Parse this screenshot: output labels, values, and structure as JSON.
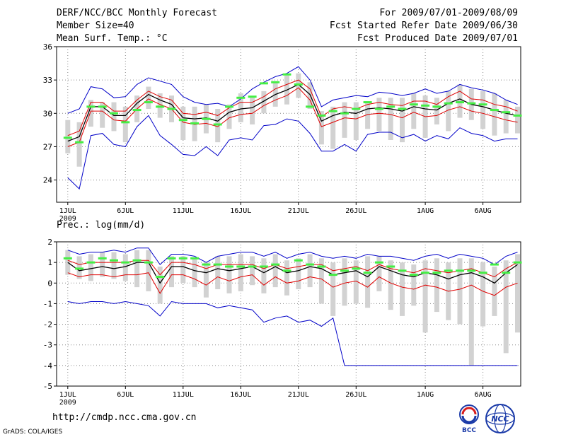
{
  "header": {
    "title": "DERF/NCC/BCC Monthly Forecast",
    "member_size": "Member Size=40",
    "variable": "Mean Surf. Temp.: °C",
    "period": "For 2009/07/01-2009/08/09",
    "started": "Fcst Started Refer Date 2009/06/30",
    "produced": "Fcst Produced Date 2009/07/01"
  },
  "precip_label": "Prec.: log(mm/d)",
  "footer": {
    "url": "http://cmdp.ncc.cma.gov.cn",
    "credit": "GrADS: COLA/IGES",
    "logo1_text": "BCC",
    "logo2_text": "NCC"
  },
  "colors": {
    "envelope": "#0000c8",
    "spread": "#e00000",
    "mean": "#000000",
    "box": "#d2d2d2",
    "marker": "#44ee44",
    "grid": "#888888"
  },
  "chart_data": [
    {
      "type": "line",
      "title": "Mean Surf. Temp.: °C",
      "x_days": 40,
      "x_ticks": [
        "1JUL",
        "6JUL",
        "11JUL",
        "16JUL",
        "21JUL",
        "26JUL",
        "1AUG",
        "6AUG"
      ],
      "x_tick_days": [
        1,
        6,
        11,
        16,
        21,
        26,
        32,
        37
      ],
      "x_year_label": "2009",
      "ylim": [
        22,
        36
      ],
      "yticks": [
        24,
        27,
        30,
        33,
        36
      ],
      "series": [
        {
          "name": "max",
          "values": [
            30.0,
            30.4,
            32.4,
            32.2,
            31.4,
            31.5,
            32.6,
            33.2,
            32.9,
            32.6,
            31.5,
            31.0,
            30.8,
            30.9,
            30.6,
            31.3,
            32.2,
            32.8,
            33.3,
            33.6,
            34.2,
            33.0,
            30.6,
            31.2,
            31.4,
            31.6,
            31.5,
            31.9,
            31.8,
            31.6,
            31.8,
            32.2,
            31.8,
            32.0,
            32.6,
            32.3,
            32.1,
            31.8,
            31.2,
            30.8
          ]
        },
        {
          "name": "mean_plus_sd",
          "values": [
            28.0,
            28.4,
            31.0,
            31.0,
            30.2,
            30.2,
            31.2,
            32.0,
            31.5,
            31.2,
            30.0,
            29.9,
            30.1,
            29.8,
            30.5,
            31.0,
            31.0,
            31.5,
            32.2,
            32.6,
            33.0,
            32.2,
            29.7,
            30.4,
            30.6,
            30.4,
            30.8,
            31.0,
            30.8,
            30.7,
            31.1,
            31.1,
            30.8,
            31.5,
            32.0,
            31.3,
            31.2,
            30.8,
            30.6,
            30.2
          ]
        },
        {
          "name": "mean",
          "values": [
            27.5,
            27.9,
            30.6,
            30.6,
            29.8,
            29.8,
            30.9,
            31.7,
            31.2,
            30.8,
            29.6,
            29.5,
            29.6,
            29.3,
            30.1,
            30.4,
            30.5,
            31.1,
            31.7,
            32.1,
            32.6,
            31.7,
            29.3,
            29.8,
            30.1,
            30.0,
            30.4,
            30.5,
            30.4,
            30.2,
            30.6,
            30.4,
            30.3,
            30.9,
            31.3,
            30.8,
            30.6,
            30.3,
            30.0,
            29.8
          ]
        },
        {
          "name": "mean_minus_sd",
          "values": [
            27.0,
            27.4,
            30.2,
            30.2,
            29.4,
            29.3,
            30.4,
            31.3,
            30.8,
            30.4,
            29.2,
            29.0,
            29.1,
            28.8,
            29.6,
            29.9,
            30.0,
            30.7,
            31.2,
            31.6,
            32.3,
            31.2,
            28.8,
            29.2,
            29.6,
            29.5,
            29.9,
            30.0,
            29.9,
            29.6,
            30.1,
            29.7,
            29.8,
            30.3,
            30.6,
            30.2,
            30.0,
            29.7,
            29.4,
            29.2
          ]
        },
        {
          "name": "min",
          "values": [
            24.2,
            23.2,
            28.0,
            28.2,
            27.2,
            27.0,
            28.8,
            29.8,
            28.0,
            27.2,
            26.3,
            26.2,
            27.0,
            26.2,
            27.6,
            27.8,
            27.6,
            28.9,
            29.0,
            29.5,
            29.3,
            28.2,
            26.6,
            26.6,
            27.2,
            26.6,
            28.1,
            28.3,
            28.3,
            27.8,
            28.1,
            27.5,
            28.0,
            27.7,
            28.7,
            28.2,
            28.0,
            27.5,
            27.7,
            27.7
          ]
        }
      ],
      "box_low": [
        26.4,
        25.2,
        28.8,
        28.7,
        28.4,
        27.4,
        29.2,
        30.4,
        29.6,
        29.2,
        27.6,
        27.5,
        28.2,
        27.4,
        28.6,
        29.2,
        29.0,
        30.0,
        30.6,
        30.8,
        31.4,
        30.4,
        27.2,
        26.8,
        27.8,
        27.6,
        28.6,
        28.4,
        27.6,
        27.4,
        28.6,
        27.8,
        29.0,
        28.4,
        29.6,
        29.4,
        28.6,
        28.0,
        28.2,
        28.2
      ],
      "box_high": [
        29.4,
        29.2,
        31.2,
        31.0,
        31.0,
        30.6,
        31.6,
        32.4,
        31.8,
        31.6,
        30.6,
        30.6,
        30.8,
        30.4,
        30.8,
        31.8,
        31.4,
        32.0,
        32.8,
        33.4,
        33.6,
        32.8,
        30.2,
        30.6,
        31.0,
        31.0,
        31.0,
        31.4,
        31.4,
        31.4,
        31.8,
        31.6,
        31.4,
        32.0,
        32.6,
        32.2,
        32.0,
        31.8,
        31.2,
        30.6
      ],
      "marker": [
        27.8,
        27.4,
        30.6,
        30.6,
        30.0,
        29.2,
        30.3,
        31.0,
        30.6,
        30.4,
        29.4,
        29.1,
        29.5,
        29.0,
        30.6,
        31.4,
        31.5,
        32.7,
        32.8,
        33.5,
        32.6,
        30.6,
        29.8,
        30.2,
        30.0,
        30.4,
        31.0,
        30.4,
        30.6,
        30.4,
        30.8,
        30.7,
        30.6,
        30.9,
        31.0,
        30.9,
        30.8,
        30.3,
        30.1,
        29.8
      ]
    },
    {
      "type": "line",
      "title": "Prec.: log(mm/d)",
      "x_days": 40,
      "x_ticks": [
        "1JUL",
        "6JUL",
        "11JUL",
        "16JUL",
        "21JUL",
        "26JUL",
        "1AUG",
        "6AUG"
      ],
      "x_tick_days": [
        1,
        6,
        11,
        16,
        21,
        26,
        32,
        37
      ],
      "x_year_label": "2009",
      "ylim": [
        -5,
        2
      ],
      "yticks": [
        -5,
        -4,
        -3,
        -2,
        -1,
        0,
        1,
        2
      ],
      "series": [
        {
          "name": "max",
          "values": [
            1.6,
            1.4,
            1.5,
            1.5,
            1.6,
            1.5,
            1.7,
            1.7,
            0.9,
            1.4,
            1.4,
            1.3,
            1.0,
            1.3,
            1.4,
            1.5,
            1.5,
            1.3,
            1.5,
            1.2,
            1.4,
            1.5,
            1.3,
            1.2,
            1.3,
            1.2,
            1.4,
            1.3,
            1.3,
            1.2,
            1.1,
            1.3,
            1.4,
            1.2,
            1.4,
            1.3,
            1.2,
            0.9,
            1.3,
            1.5
          ]
        },
        {
          "name": "mean_plus_sd",
          "values": [
            1.1,
            0.9,
            1.0,
            1.0,
            1.0,
            1.0,
            1.1,
            1.1,
            0.4,
            1.0,
            1.0,
            0.9,
            0.7,
            0.9,
            0.9,
            0.9,
            0.9,
            0.7,
            0.9,
            0.7,
            0.8,
            0.9,
            0.9,
            0.6,
            0.7,
            0.8,
            0.6,
            0.9,
            0.7,
            0.6,
            0.5,
            0.7,
            0.6,
            0.5,
            0.6,
            0.7,
            0.5,
            0.3,
            0.7,
            1.0
          ]
        },
        {
          "name": "mean",
          "values": [
            1.0,
            0.6,
            0.7,
            0.8,
            0.7,
            0.8,
            1.0,
            1.0,
            0.0,
            0.8,
            0.8,
            0.6,
            0.5,
            0.7,
            0.6,
            0.7,
            0.8,
            0.5,
            0.8,
            0.5,
            0.6,
            0.8,
            0.7,
            0.4,
            0.5,
            0.6,
            0.3,
            0.8,
            0.6,
            0.4,
            0.3,
            0.5,
            0.4,
            0.2,
            0.4,
            0.5,
            0.3,
            0.0,
            0.5,
            0.9
          ]
        },
        {
          "name": "mean_minus_sd",
          "values": [
            0.5,
            0.3,
            0.4,
            0.4,
            0.3,
            0.4,
            0.4,
            0.5,
            -0.5,
            0.4,
            0.4,
            0.2,
            -0.1,
            0.3,
            0.1,
            0.3,
            0.4,
            -0.1,
            0.3,
            0.0,
            0.1,
            0.3,
            0.2,
            -0.2,
            0.0,
            0.1,
            -0.2,
            0.3,
            0.0,
            -0.2,
            -0.3,
            -0.1,
            -0.2,
            -0.4,
            -0.3,
            -0.1,
            -0.4,
            -0.6,
            -0.2,
            0.0
          ]
        },
        {
          "name": "min",
          "values": [
            -0.9,
            -1.0,
            -0.9,
            -0.9,
            -1.0,
            -0.9,
            -1.0,
            -1.1,
            -1.6,
            -0.9,
            -1.0,
            -1.0,
            -1.0,
            -1.2,
            -1.1,
            -1.2,
            -1.3,
            -1.9,
            -1.7,
            -1.6,
            -1.9,
            -1.8,
            -2.1,
            -1.7,
            -4.0,
            -4.0,
            -4.0,
            -4.0,
            -4.0,
            -4.0,
            -4.0,
            -4.0,
            -4.0,
            -4.0,
            -4.0,
            -4.0,
            -4.0,
            -4.0,
            -4.0,
            -4.0
          ]
        }
      ],
      "box_low": [
        0.4,
        0.2,
        0.1,
        0.3,
        0.2,
        0.1,
        -0.2,
        -0.4,
        -1.0,
        -0.2,
        0.0,
        -0.2,
        -0.7,
        -0.3,
        -0.5,
        -0.4,
        -0.1,
        -0.5,
        -0.2,
        -0.6,
        -0.3,
        -0.2,
        -1.0,
        -1.6,
        -1.1,
        -1.0,
        -1.2,
        -0.4,
        -1.3,
        -1.6,
        -1.1,
        -2.4,
        -1.4,
        -1.8,
        -2.0,
        -4.0,
        -2.1,
        -1.6,
        -3.4,
        -2.4
      ],
      "box_high": [
        1.6,
        1.3,
        1.4,
        1.5,
        1.5,
        1.4,
        1.6,
        1.6,
        0.8,
        1.3,
        1.3,
        1.2,
        1.0,
        1.3,
        1.3,
        1.4,
        1.3,
        1.2,
        1.4,
        1.1,
        1.2,
        1.4,
        1.2,
        1.0,
        1.2,
        1.1,
        1.3,
        1.3,
        1.1,
        1.0,
        0.9,
        1.1,
        1.2,
        1.0,
        1.2,
        1.2,
        1.0,
        0.8,
        1.1,
        1.4
      ],
      "marker": [
        1.2,
        0.7,
        1.0,
        1.2,
        1.1,
        1.0,
        1.1,
        1.0,
        0.3,
        1.2,
        1.2,
        1.2,
        0.9,
        0.9,
        0.8,
        0.8,
        0.8,
        0.8,
        0.9,
        0.6,
        1.1,
        0.9,
        0.8,
        0.4,
        0.6,
        0.7,
        0.5,
        1.0,
        0.8,
        0.6,
        0.4,
        0.5,
        0.5,
        0.6,
        0.6,
        0.6,
        0.5,
        0.9,
        0.5,
        1.0
      ]
    }
  ]
}
